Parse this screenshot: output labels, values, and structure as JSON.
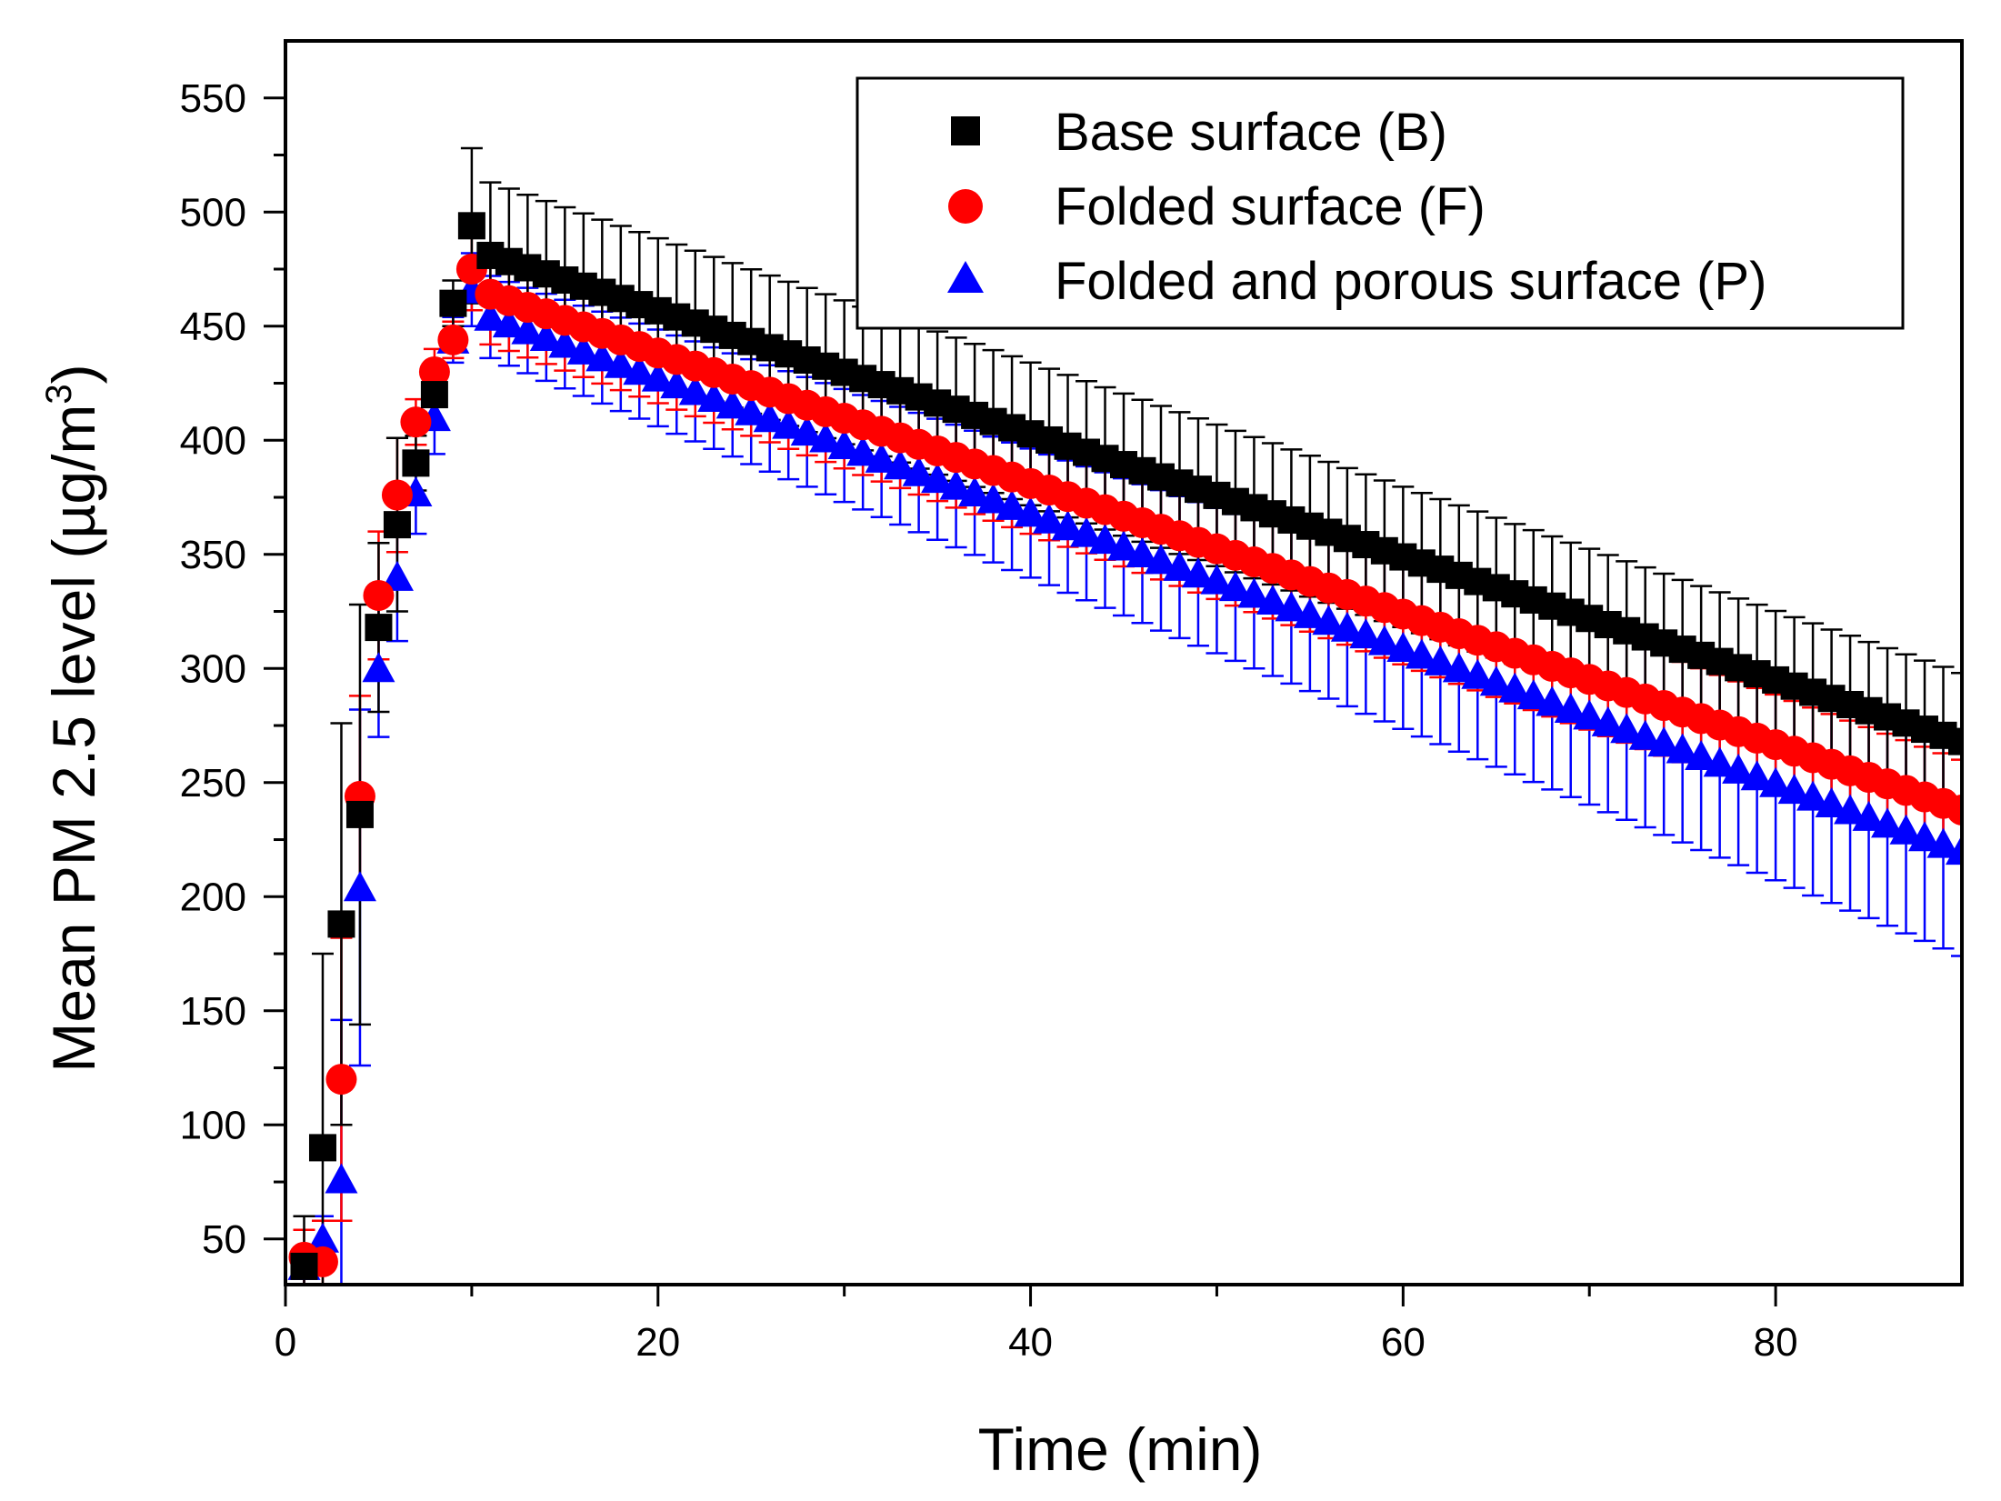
{
  "chart_data": {
    "type": "scatter",
    "title": "",
    "xlabel": "Time (min)",
    "ylabel_main": "Mean PM 2.5 level (µg/m",
    "ylabel_sup": "3",
    "ylabel_close": ")",
    "xlim": [
      0,
      90
    ],
    "ylim": [
      30,
      575
    ],
    "xticks": [
      0,
      20,
      40,
      60,
      80
    ],
    "yticks": [
      50,
      100,
      150,
      200,
      250,
      300,
      350,
      400,
      450,
      500,
      550
    ],
    "grid": false,
    "legend_position": "top-right",
    "series": [
      {
        "name": "Base surface (B)",
        "marker": "square",
        "color": "#000000",
        "peak_time": 10,
        "rise": [
          [
            1,
            38
          ],
          [
            2,
            90
          ],
          [
            3,
            188
          ],
          [
            4,
            236
          ],
          [
            5,
            318
          ],
          [
            6,
            363
          ],
          [
            7,
            390
          ],
          [
            8,
            420
          ],
          [
            9,
            460
          ],
          [
            10,
            494
          ]
        ],
        "decay_start": 481,
        "decay_end": 268,
        "err_rise": [
          22,
          85,
          88,
          92,
          37,
          38,
          12,
          12,
          10,
          34
        ],
        "err_decay_start": 32,
        "err_decay_end": 30
      },
      {
        "name": "Folded surface (F)",
        "marker": "circle",
        "color": "#ff0000",
        "peak_time": 10,
        "rise": [
          [
            1,
            42
          ],
          [
            2,
            40
          ],
          [
            3,
            120
          ],
          [
            4,
            244
          ],
          [
            5,
            332
          ],
          [
            6,
            376
          ],
          [
            7,
            408
          ],
          [
            8,
            430
          ],
          [
            9,
            444
          ],
          [
            10,
            475
          ]
        ],
        "decay_start": 464,
        "decay_end": 238,
        "err_rise": [
          12,
          18,
          62,
          44,
          28,
          25,
          10,
          10,
          8,
          18
        ],
        "err_decay_start": 22,
        "err_decay_end": 22
      },
      {
        "name": "Folded and porous surface (P)",
        "marker": "triangle",
        "color": "#0000ff",
        "peak_time": 10,
        "rise": [
          [
            1,
            38
          ],
          [
            2,
            50
          ],
          [
            3,
            76
          ],
          [
            4,
            204
          ],
          [
            5,
            300
          ],
          [
            6,
            340
          ],
          [
            7,
            377
          ],
          [
            8,
            410
          ],
          [
            9,
            444
          ],
          [
            10,
            466
          ]
        ],
        "decay_start": 454,
        "decay_end": 220,
        "err_rise": [
          8,
          10,
          70,
          78,
          30,
          28,
          18,
          16,
          10,
          16
        ],
        "err_decay_start": 18,
        "err_decay_end": 46
      }
    ]
  }
}
